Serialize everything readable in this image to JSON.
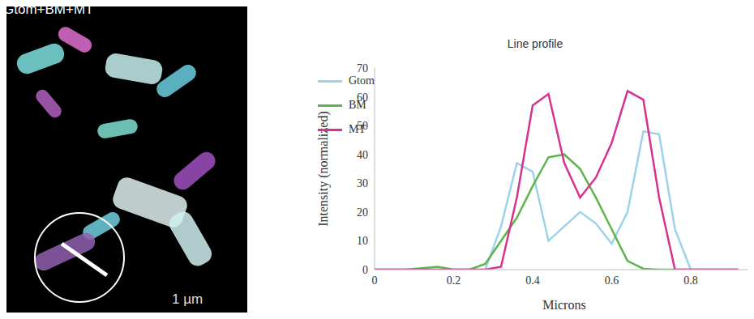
{
  "image_panel": {
    "label": "Gtom+BM+MT",
    "scale_bar": "1 µm"
  },
  "chart_data": {
    "type": "line",
    "title": "Line profile",
    "x_label": "Microns",
    "y_label": "Intensity (normalized)",
    "x": [
      0,
      0.04,
      0.08,
      0.12,
      0.16,
      0.2,
      0.24,
      0.28,
      0.32,
      0.36,
      0.4,
      0.44,
      0.48,
      0.52,
      0.56,
      0.6,
      0.64,
      0.68,
      0.72,
      0.76,
      0.8,
      0.84,
      0.88,
      0.92
    ],
    "series": [
      {
        "name": "Gtom",
        "color": "#9dd3e6",
        "values": [
          0,
          0,
          0,
          0,
          0,
          0,
          0,
          0,
          15,
          37,
          34,
          10,
          15,
          20,
          16,
          9,
          20,
          48,
          47,
          14,
          0,
          0,
          0,
          0
        ]
      },
      {
        "name": "BM",
        "color": "#5cb54a",
        "values": [
          0,
          0,
          0,
          0.5,
          1,
          0,
          0,
          2,
          10,
          18,
          29,
          39,
          40,
          35,
          25,
          14,
          3,
          0.3,
          0,
          0,
          0,
          0,
          0,
          0
        ]
      },
      {
        "name": "MT",
        "color": "#d6338f",
        "values": [
          0,
          0,
          0,
          0,
          0,
          0,
          0,
          0,
          1,
          25,
          57,
          61,
          37,
          25,
          32,
          44,
          62,
          59,
          25,
          0,
          0,
          0,
          0,
          0
        ]
      }
    ],
    "xlim": [
      0,
      0.96
    ],
    "xticks": [
      0,
      0.2,
      0.4,
      0.6,
      0.8
    ],
    "ylim": [
      0,
      70
    ],
    "yticks": [
      0,
      10,
      20,
      30,
      40,
      50,
      60,
      70
    ],
    "grid": false,
    "legend": "upper left"
  }
}
